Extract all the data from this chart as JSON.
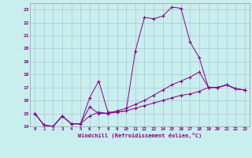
{
  "title": "",
  "xlabel": "Windchill (Refroidissement éolien,°C)",
  "bg_color": "#c8eeee",
  "line_color": "#880088",
  "grid_color": "#aabbcc",
  "xlim": [
    -0.5,
    23.5
  ],
  "ylim": [
    14,
    23.5
  ],
  "xticks": [
    0,
    1,
    2,
    3,
    4,
    5,
    6,
    7,
    8,
    9,
    10,
    11,
    12,
    13,
    14,
    15,
    16,
    17,
    18,
    19,
    20,
    21,
    22,
    23
  ],
  "yticks": [
    14,
    15,
    16,
    17,
    18,
    19,
    20,
    21,
    22,
    23
  ],
  "line1_x": [
    0,
    1,
    2,
    3,
    4,
    5,
    6,
    7,
    8,
    9,
    10,
    11,
    12,
    13,
    14,
    15,
    16,
    17,
    18,
    19,
    20,
    21,
    22,
    23
  ],
  "line1_y": [
    15.0,
    14.1,
    14.0,
    14.8,
    14.2,
    14.2,
    16.2,
    17.5,
    15.1,
    15.1,
    15.2,
    19.8,
    22.4,
    22.3,
    22.5,
    23.2,
    23.1,
    20.5,
    19.3,
    17.0,
    17.0,
    17.2,
    16.9,
    16.8
  ],
  "line2_x": [
    0,
    1,
    2,
    3,
    4,
    5,
    6,
    7,
    8,
    9,
    10,
    11,
    12,
    13,
    14,
    15,
    16,
    17,
    18,
    19,
    20,
    21,
    22,
    23
  ],
  "line2_y": [
    15.0,
    14.1,
    14.0,
    14.8,
    14.2,
    14.2,
    15.5,
    15.0,
    15.0,
    15.2,
    15.4,
    15.7,
    16.0,
    16.4,
    16.8,
    17.2,
    17.5,
    17.8,
    18.2,
    17.0,
    17.0,
    17.2,
    16.9,
    16.8
  ],
  "line3_x": [
    0,
    1,
    2,
    3,
    4,
    5,
    6,
    7,
    8,
    9,
    10,
    11,
    12,
    13,
    14,
    15,
    16,
    17,
    18,
    19,
    20,
    21,
    22,
    23
  ],
  "line3_y": [
    15.0,
    14.1,
    14.0,
    14.8,
    14.2,
    14.2,
    14.8,
    15.1,
    15.0,
    15.1,
    15.2,
    15.4,
    15.6,
    15.8,
    16.0,
    16.2,
    16.4,
    16.5,
    16.7,
    17.0,
    17.0,
    17.2,
    16.9,
    16.8
  ]
}
